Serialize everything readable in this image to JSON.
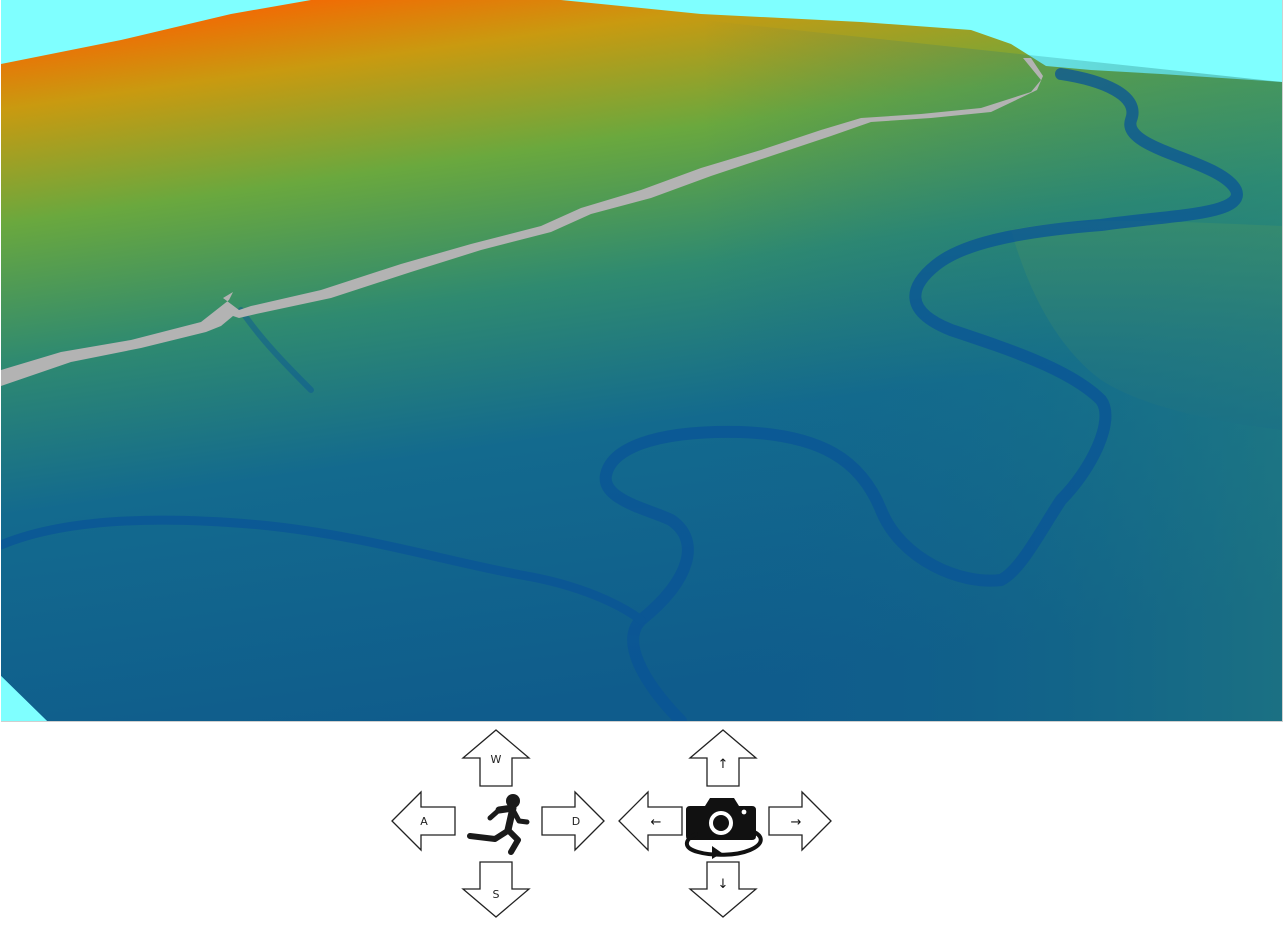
{
  "scene": {
    "sky_color": "#7fffff",
    "terrain_colors": [
      "#ff5a00",
      "#c99a10",
      "#6aa83e",
      "#2f8a70",
      "#136a8e",
      "#0a5594"
    ],
    "road_color": "#b3b3b3"
  },
  "movement_controls": {
    "icon": "running-person-icon",
    "forward_key": "W",
    "left_key": "A",
    "right_key": "D",
    "back_key": "S"
  },
  "camera_controls": {
    "icon": "rotating-camera-icon",
    "up_glyph": "↑",
    "left_glyph": "←",
    "right_glyph": "→",
    "down_glyph": "↓"
  }
}
